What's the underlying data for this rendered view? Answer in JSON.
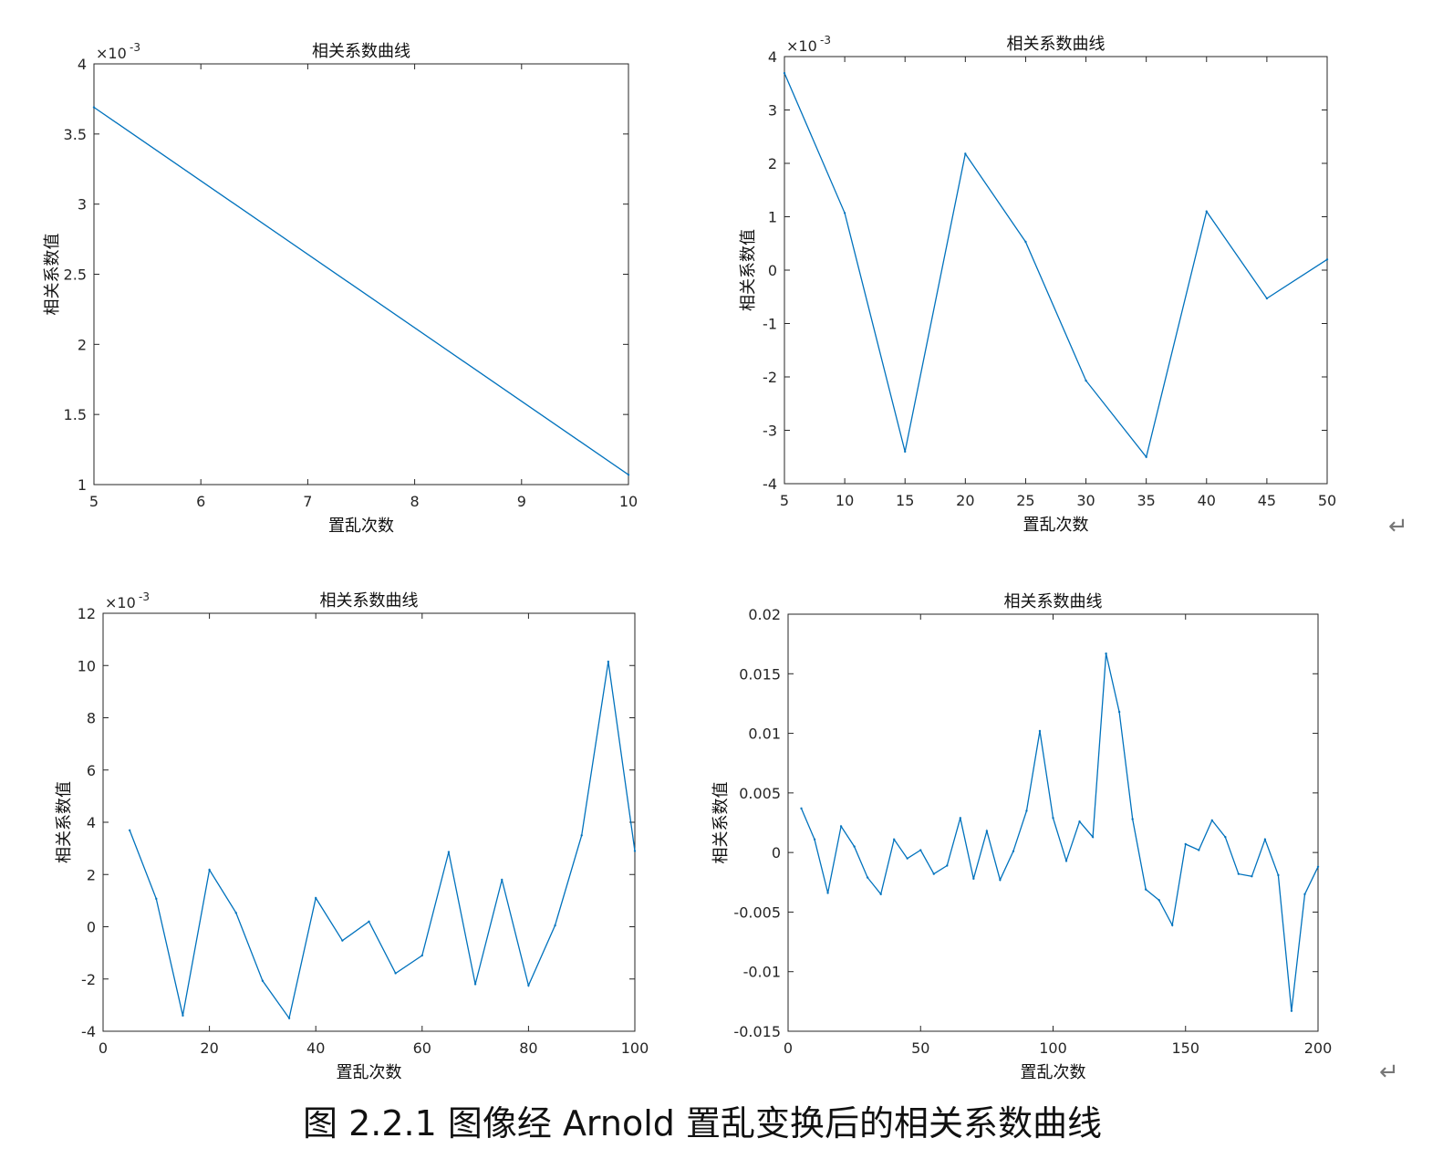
{
  "caption": "图 2.2.1 图像经 Arnold 置乱变换后的相关系数曲线",
  "return_mark": "↵",
  "chart_data": [
    {
      "type": "line",
      "title": "相关系数曲线",
      "xlabel": "置乱次数",
      "ylabel": "相关系数值",
      "exponent_label": "×10",
      "exponent_power": "-3",
      "xlim": [
        5,
        10
      ],
      "ylim": [
        1,
        4
      ],
      "xticks": [
        5,
        6,
        7,
        8,
        9,
        10
      ],
      "yticks": [
        1,
        1.5,
        2,
        2.5,
        3,
        3.5,
        4
      ],
      "color": "#0072BD",
      "x": [
        5,
        10
      ],
      "y": [
        3.69,
        1.07
      ]
    },
    {
      "type": "line",
      "title": "相关系数曲线",
      "xlabel": "置乱次数",
      "ylabel": "相关系数值",
      "exponent_label": "×10",
      "exponent_power": "-3",
      "xlim": [
        5,
        50
      ],
      "ylim": [
        -4,
        4
      ],
      "xticks": [
        5,
        10,
        15,
        20,
        25,
        30,
        35,
        40,
        45,
        50
      ],
      "yticks": [
        -4,
        -3,
        -2,
        -1,
        0,
        1,
        2,
        3,
        4
      ],
      "color": "#0072BD",
      "x": [
        5,
        10,
        15,
        20,
        25,
        30,
        35,
        40,
        45,
        50
      ],
      "y": [
        3.69,
        1.07,
        -3.4,
        2.18,
        0.53,
        -2.07,
        -3.5,
        1.1,
        -0.53,
        0.2
      ]
    },
    {
      "type": "line",
      "title": "相关系数曲线",
      "xlabel": "置乱次数",
      "ylabel": "相关系数值",
      "exponent_label": "×10",
      "exponent_power": "-3",
      "xlim": [
        0,
        100
      ],
      "ylim": [
        -4,
        12
      ],
      "xticks": [
        0,
        20,
        40,
        60,
        80,
        100
      ],
      "yticks": [
        -4,
        -2,
        0,
        2,
        4,
        6,
        8,
        10,
        12
      ],
      "color": "#0072BD",
      "x": [
        5,
        10,
        15,
        20,
        25,
        30,
        35,
        40,
        45,
        50,
        55,
        60,
        65,
        70,
        75,
        80,
        85,
        90,
        95,
        100
      ],
      "y": [
        3.69,
        1.07,
        -3.4,
        2.18,
        0.53,
        -2.07,
        -3.5,
        1.1,
        -0.53,
        0.2,
        -1.78,
        -1.1,
        2.86,
        -2.2,
        1.8,
        -2.25,
        0.05,
        3.5,
        10.15,
        2.9
      ]
    },
    {
      "type": "line",
      "title": "相关系数曲线",
      "xlabel": "置乱次数",
      "ylabel": "相关系数值",
      "exponent_label": "",
      "exponent_power": "",
      "xlim": [
        0,
        200
      ],
      "ylim": [
        -0.015,
        0.02
      ],
      "xticks": [
        0,
        50,
        100,
        150,
        200
      ],
      "yticks": [
        -0.015,
        -0.01,
        -0.005,
        0,
        0.005,
        0.01,
        0.015,
        0.02
      ],
      "color": "#0072BD",
      "x": [
        5,
        10,
        15,
        20,
        25,
        30,
        35,
        40,
        45,
        50,
        55,
        60,
        65,
        70,
        75,
        80,
        85,
        90,
        95,
        100,
        105,
        110,
        115,
        120,
        125,
        130,
        135,
        140,
        145,
        150,
        155,
        160,
        165,
        170,
        175,
        180,
        185,
        190,
        195,
        200
      ],
      "y": [
        0.0037,
        0.0011,
        -0.0034,
        0.0022,
        0.0005,
        -0.0021,
        -0.0035,
        0.0011,
        -0.0005,
        0.0002,
        -0.0018,
        -0.0011,
        0.0029,
        -0.0022,
        0.0018,
        -0.0023,
        0.0001,
        0.0035,
        0.0102,
        0.0029,
        -0.0007,
        0.0026,
        0.0013,
        0.0167,
        0.0118,
        0.0028,
        -0.0031,
        -0.004,
        -0.0061,
        0.0007,
        0.0002,
        0.0027,
        0.0013,
        -0.0018,
        -0.002,
        0.0011,
        -0.0019,
        -0.0133,
        -0.0035,
        -0.0012
      ]
    }
  ]
}
